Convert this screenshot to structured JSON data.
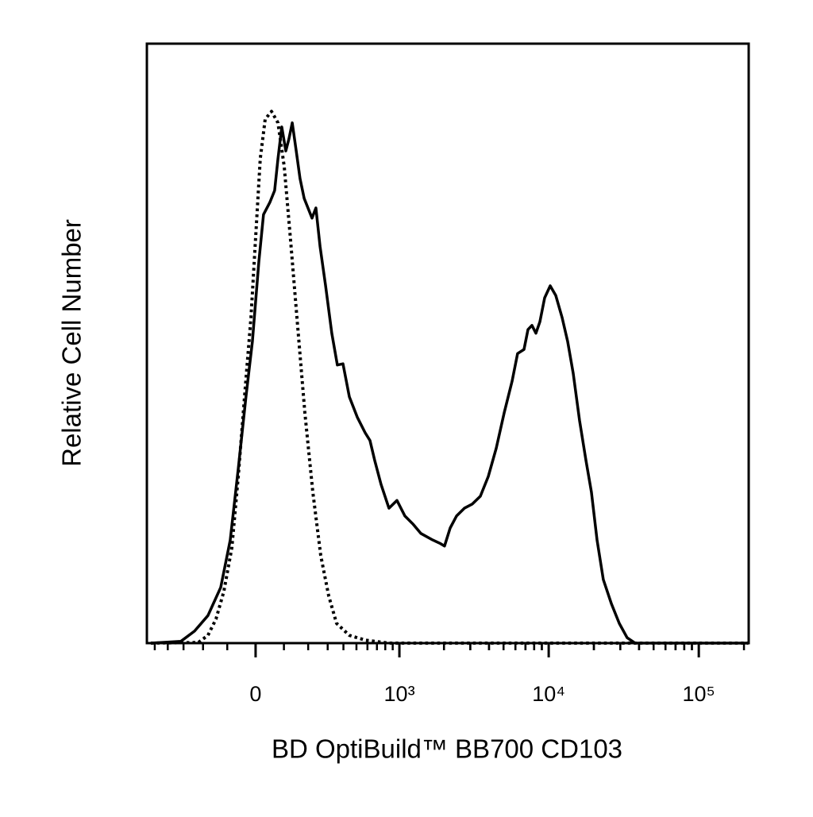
{
  "chart_data": {
    "type": "line",
    "x_label": "BD OptiBuild™ BB700 CD103",
    "y_label": "Relative Cell Number",
    "xscale": "biexponential",
    "xlim": [
      -570,
      215000
    ],
    "ylim": [
      0,
      100
    ],
    "xticks": [
      0,
      {
        "value": 1000,
        "label": "10³"
      },
      {
        "value": 10000,
        "label": "10⁴"
      },
      {
        "value": 100000,
        "label": "10⁵"
      }
    ],
    "series": [
      {
        "color": "#000000",
        "dash": "solid",
        "x": [
          -534,
          -315,
          -241,
          -178,
          -125,
          -89,
          -60,
          -33,
          -11,
          11,
          27,
          49,
          66,
          78,
          92,
          107,
          119,
          132,
          148,
          164,
          182,
          199,
          218,
          237,
          258,
          288,
          324,
          359,
          397,
          443,
          507,
          578,
          625,
          675,
          747,
          848,
          962,
          1090,
          1233,
          1396,
          1679,
          1898,
          2018,
          2199,
          2426,
          2738,
          3095,
          3499,
          3954,
          4467,
          5044,
          5698,
          6204,
          6844,
          7272,
          7729,
          8215,
          8733,
          9393,
          10227,
          11137,
          12287,
          13380,
          14562,
          16056,
          17695,
          19267,
          20984,
          23125,
          26136,
          29525,
          33316,
          37642,
          214000
        ],
        "values": [
          0,
          0.3,
          2.0,
          4.6,
          9.3,
          17.2,
          29.1,
          41.1,
          50.3,
          63.6,
          71.5,
          73.5,
          75.5,
          80.8,
          86.1,
          82.1,
          84.1,
          86.8,
          82.1,
          77.5,
          74.2,
          72.6,
          70.9,
          72.6,
          66.2,
          59.6,
          51.7,
          46.4,
          46.6,
          41.1,
          37.7,
          35.1,
          33.8,
          30.5,
          26.5,
          22.5,
          23.8,
          21.2,
          19.9,
          18.3,
          17.2,
          16.6,
          16.2,
          19.2,
          21.2,
          22.5,
          23.2,
          24.5,
          27.8,
          32.5,
          38.4,
          43.7,
          48.3,
          49.0,
          52.3,
          53.0,
          51.7,
          53.6,
          57.6,
          59.6,
          58.0,
          54.3,
          50.3,
          45.0,
          37.1,
          30.5,
          25.2,
          17.2,
          10.6,
          6.6,
          3.3,
          0.9,
          0,
          0
        ]
      },
      {
        "color": "#000000",
        "dash": "dotted",
        "x": [
          -534,
          -222,
          -178,
          -144,
          -113,
          -83,
          -60,
          -38,
          -16,
          0,
          16,
          33,
          55,
          78,
          101,
          125,
          151,
          185,
          222,
          262,
          306,
          354,
          443,
          578,
          848,
          214000
        ],
        "values": [
          0,
          0.1,
          1.3,
          4.0,
          8.6,
          15.9,
          27.8,
          41.1,
          54.3,
          67.5,
          80.8,
          87.4,
          88.7,
          86.8,
          79.5,
          67.5,
          54.3,
          38.4,
          25.2,
          14.6,
          7.9,
          3.3,
          1.3,
          0.5,
          0,
          0
        ]
      }
    ]
  }
}
